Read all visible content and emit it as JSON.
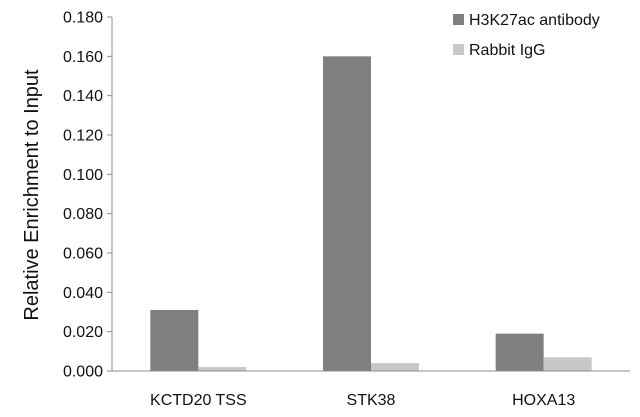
{
  "chart_data": {
    "type": "bar",
    "title": "",
    "xlabel": "",
    "ylabel": "Relative Enrichment to Input",
    "ylim": [
      0,
      0.18
    ],
    "yticks": [
      "0.000",
      "0.020",
      "0.040",
      "0.060",
      "0.080",
      "0.100",
      "0.120",
      "0.140",
      "0.160",
      "0.180"
    ],
    "categories": [
      "KCTD20 TSS",
      "STK38",
      "HOXA13"
    ],
    "series": [
      {
        "name": "H3K27ac antibody",
        "values": [
          0.031,
          0.16,
          0.019
        ],
        "color": "#7f7f7f"
      },
      {
        "name": "Rabbit IgG",
        "values": [
          0.002,
          0.004,
          0.007
        ],
        "color": "#c8c8c8"
      }
    ],
    "legend": "top-right",
    "grid": false
  }
}
